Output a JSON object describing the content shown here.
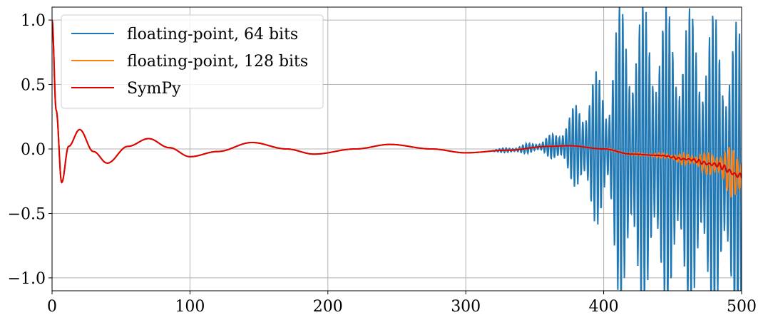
{
  "chart_data": {
    "type": "line",
    "title": "",
    "xlabel": "",
    "ylabel": "",
    "xlim": [
      0,
      500
    ],
    "ylim": [
      -1.1,
      1.1
    ],
    "xticks": [
      0,
      100,
      200,
      300,
      400,
      500
    ],
    "xtick_labels": [
      "0",
      "100",
      "200",
      "300",
      "400",
      "500"
    ],
    "yticks": [
      -1.0,
      -0.5,
      0.0,
      0.5,
      1.0
    ],
    "ytick_labels": [
      "−1.0",
      "−0.5",
      "0.0",
      "0.5",
      "1.0"
    ],
    "grid": true,
    "legend_position": "top-left",
    "reference_curve": {
      "description_free_model": "damped oscillation",
      "x": [
        0,
        3,
        7,
        12,
        20,
        30,
        40,
        55,
        70,
        85,
        100,
        120,
        145,
        170,
        190,
        220,
        245,
        275,
        300,
        330,
        360,
        375,
        400,
        420,
        440,
        460,
        480,
        500
      ],
      "y": [
        1.0,
        0.3,
        -0.26,
        0.02,
        0.15,
        -0.02,
        -0.11,
        0.02,
        0.08,
        0.01,
        -0.06,
        -0.02,
        0.05,
        0.0,
        -0.04,
        0.0,
        0.035,
        0.0,
        -0.03,
        -0.01,
        0.02,
        0.025,
        0.0,
        -0.04,
        -0.05,
        -0.08,
        -0.12,
        -0.21
      ]
    },
    "series": [
      {
        "name": "floating-point, 64 bits",
        "color": "#1f77b4",
        "x": [
          320,
          330,
          345,
          355,
          365,
          375,
          380,
          385,
          392,
          398,
          403,
          407,
          412,
          420,
          430,
          440,
          450,
          460,
          470,
          480,
          490,
          500
        ],
        "amplitude": [
          0.01,
          0.02,
          0.04,
          0.05,
          0.12,
          0.25,
          0.35,
          0.45,
          0.6,
          0.6,
          0.5,
          1.0,
          1.2,
          1.2,
          1.2,
          1.2,
          1.2,
          1.2,
          1.2,
          1.2,
          1.2,
          1.2
        ]
      },
      {
        "name": "floating-point, 128 bits",
        "color": "#ff7f0e",
        "x": [
          400,
          420,
          440,
          455,
          465,
          475,
          485,
          490,
          495,
          500
        ],
        "amplitude": [
          0.005,
          0.01,
          0.02,
          0.04,
          0.06,
          0.09,
          0.13,
          0.18,
          0.22,
          0.25
        ]
      },
      {
        "name": "SymPy",
        "color": "#e00000",
        "x": [
          440,
          460,
          480,
          500
        ],
        "amplitude": [
          0.005,
          0.01,
          0.02,
          0.03
        ]
      }
    ]
  }
}
